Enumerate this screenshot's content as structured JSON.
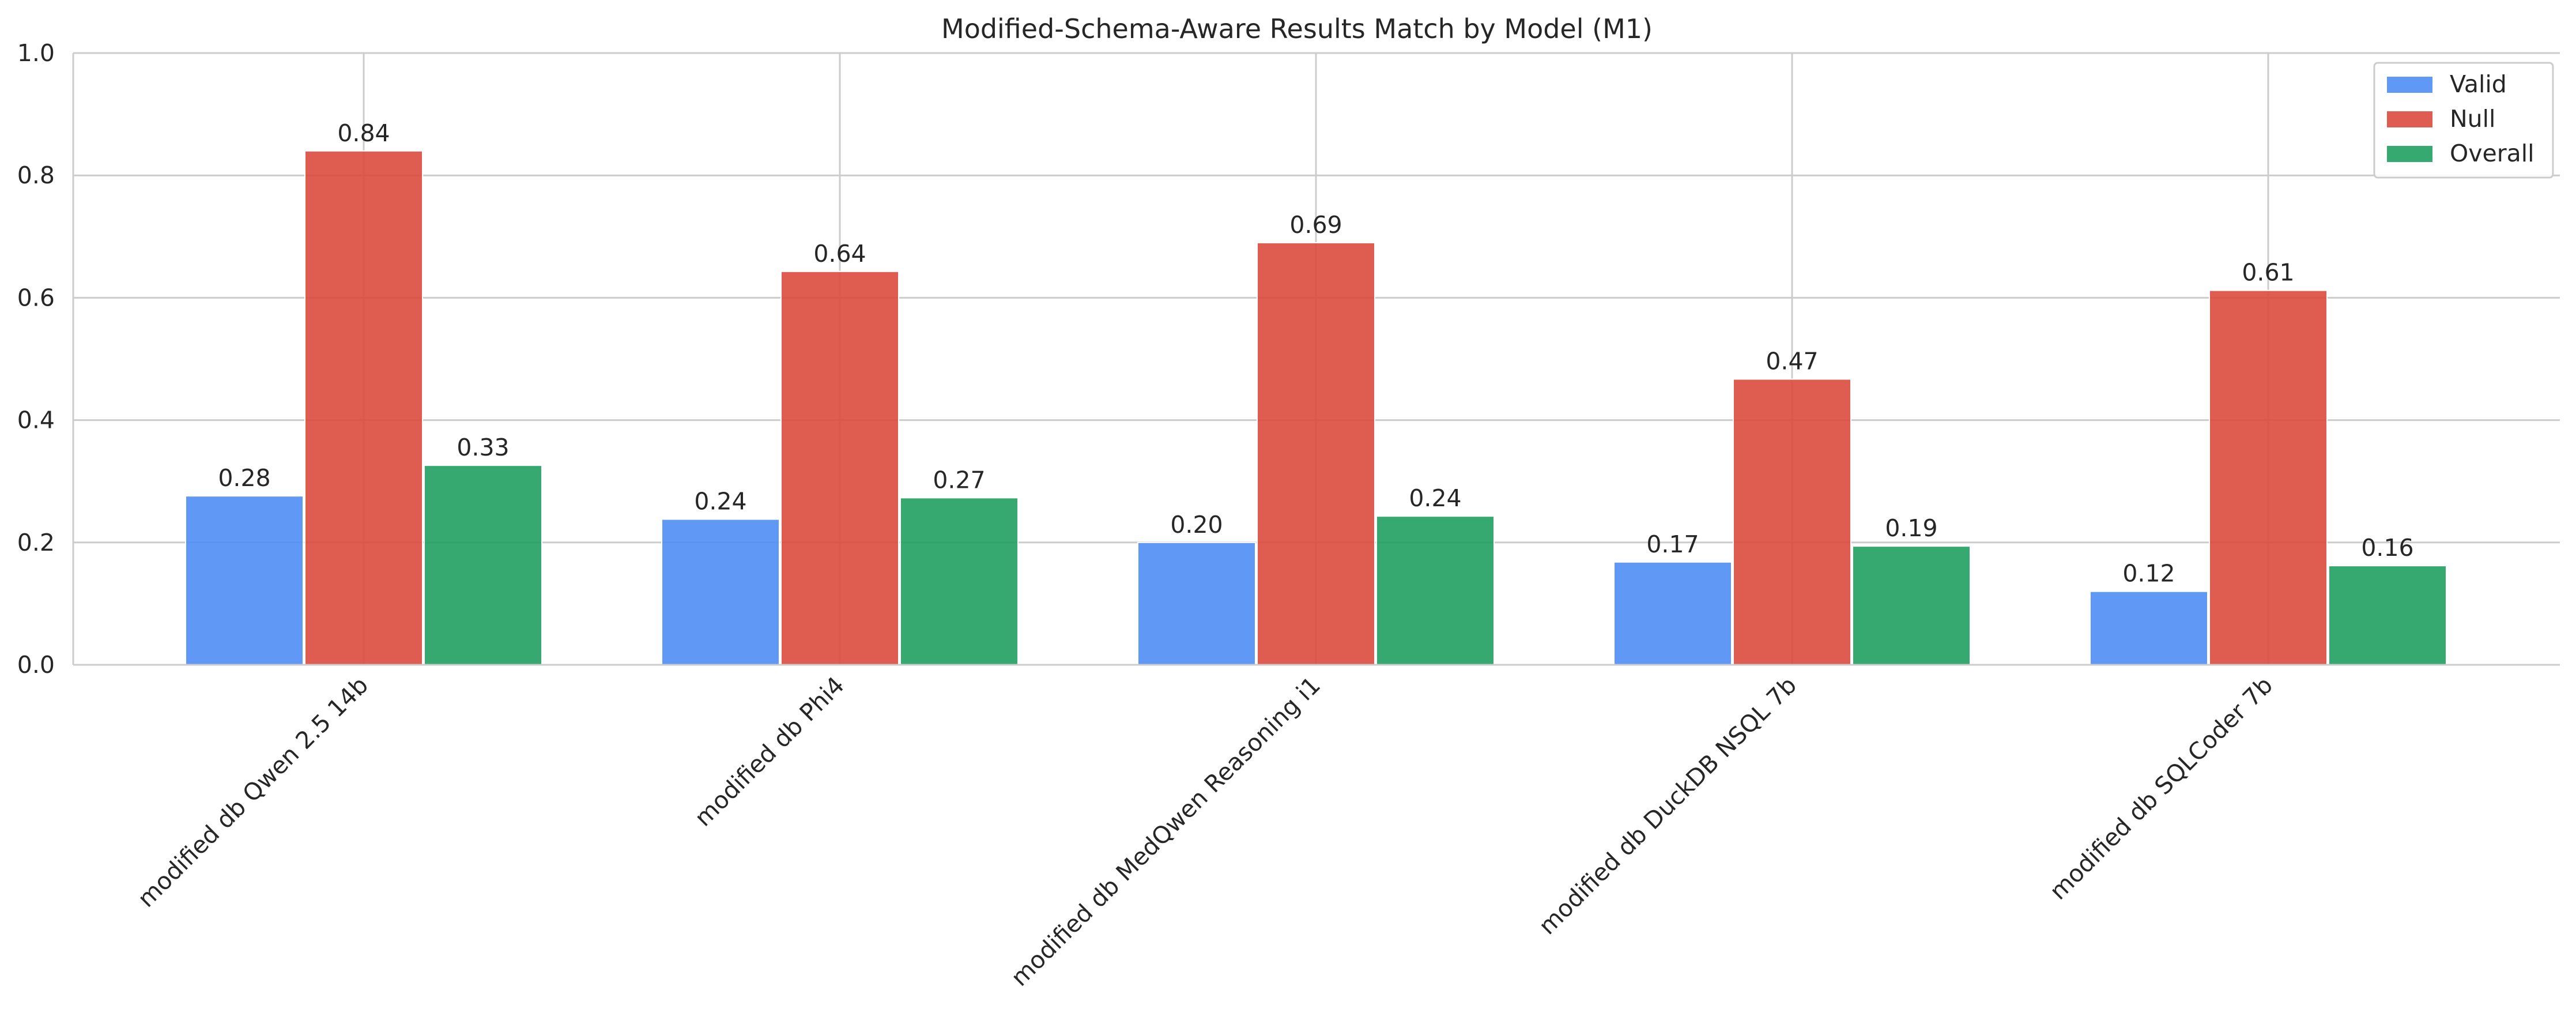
{
  "chart_data": {
    "type": "bar",
    "title": "Modified-Schema-Aware Results Match by Model (M1)",
    "xlabel": "",
    "ylabel": "",
    "ylim": [
      0,
      1.0
    ],
    "yticks": [
      "0.0",
      "0.2",
      "0.4",
      "0.6",
      "0.8",
      "1.0"
    ],
    "grid": true,
    "legend_position": "top-right",
    "categories": [
      "modified db Qwen 2.5 14b",
      "modified db Phi4",
      "modified db MedQwen Reasoning i1",
      "modified db DuckDB NSQL 7b",
      "modified db SQLCoder 7b"
    ],
    "series": [
      {
        "name": "Valid",
        "color": "#4f8df5",
        "values": [
          0.276,
          0.238,
          0.2,
          0.168,
          0.12
        ],
        "labels": [
          "0.28",
          "0.24",
          "0.20",
          "0.17",
          "0.12"
        ]
      },
      {
        "name": "Null",
        "color": "#dc4a3e",
        "values": [
          0.84,
          0.643,
          0.69,
          0.467,
          0.612
        ],
        "labels": [
          "0.84",
          "0.64",
          "0.69",
          "0.47",
          "0.61"
        ]
      },
      {
        "name": "Overall",
        "color": "#1fa060",
        "values": [
          0.326,
          0.273,
          0.243,
          0.194,
          0.162
        ],
        "labels": [
          "0.33",
          "0.27",
          "0.24",
          "0.19",
          "0.16"
        ]
      }
    ]
  }
}
